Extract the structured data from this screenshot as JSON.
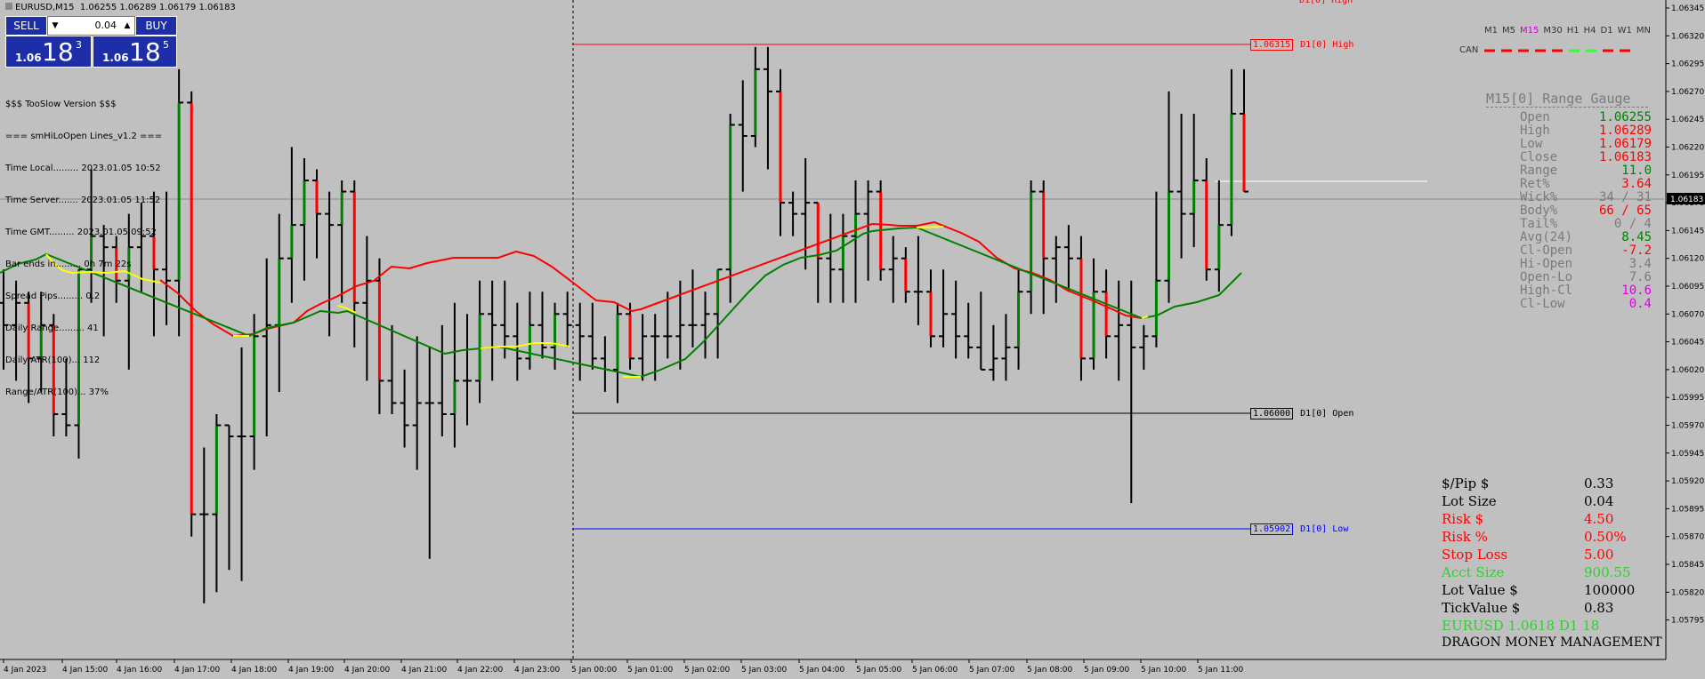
{
  "header": {
    "symbol": "EURUSD,M15",
    "ohlc": "1.06255 1.06289 1.06179 1.06183"
  },
  "trade_panel": {
    "sell_label": "SELL",
    "buy_label": "BUY",
    "lot_value": "0.04",
    "sell_price_small": "1.06",
    "sell_price_big": "18",
    "sell_price_sup": "3",
    "buy_price_small": "1.06",
    "buy_price_big": "18",
    "buy_price_sup": "5"
  },
  "info_lines": [
    "$$$ TooSlow Version $$$",
    "=== smHiLoOpen Lines_v1.2 ===",
    "Time Local......... 2023.01.05 10:52",
    "Time Server....... 2023.01.05 11:52",
    "Time GMT......... 2023.01.05 09:52",
    "Bar ends in......... 0h 7m 22s",
    "Spread Pips......... 0.2",
    "Daily Range......... 41",
    "Daily ATR(100)... 112",
    "Range/ATR(100)... 37%"
  ],
  "timeframes": [
    {
      "label": "M1",
      "color": "#333333"
    },
    {
      "label": "M5",
      "color": "#333333"
    },
    {
      "label": "M15",
      "color": "#d000d0"
    },
    {
      "label": "M30",
      "color": "#333333"
    },
    {
      "label": "H1",
      "color": "#333333"
    },
    {
      "label": "H4",
      "color": "#333333"
    },
    {
      "label": "D1",
      "color": "#333333"
    },
    {
      "label": "W1",
      "color": "#333333"
    },
    {
      "label": "MN",
      "color": "#333333"
    }
  ],
  "can_label": "CAN",
  "gauge": {
    "title": "M15[0] Range Gauge",
    "rows": [
      {
        "label": "Open",
        "value": "1.06255",
        "color": "#008000"
      },
      {
        "label": "High",
        "value": "1.06289",
        "color": "#ff0000"
      },
      {
        "label": "Low",
        "value": "1.06179",
        "color": "#ff0000"
      },
      {
        "label": "Close",
        "value": "1.06183",
        "color": "#ff0000"
      },
      {
        "label": "Range",
        "value": "11.0",
        "color": "#008000"
      },
      {
        "label": "Ret%",
        "value": "3.64",
        "color": "#ff0000"
      },
      {
        "label": "Wick%",
        "value": "34 / 31",
        "color": "#7a7a7a"
      },
      {
        "label": "Body%",
        "value": "66 / 65",
        "color": "#ff0000"
      },
      {
        "label": "Tail%",
        "value": "0 / 4",
        "color": "#7a7a7a"
      },
      {
        "label": "Avg(24)",
        "value": "8.45",
        "color": "#008000"
      },
      {
        "label": "Cl-Open",
        "value": "-7.2",
        "color": "#ff0000"
      },
      {
        "label": "Hi-Open",
        "value": "3.4",
        "color": "#7a7a7a"
      },
      {
        "label": "Open-Lo",
        "value": "7.6",
        "color": "#7a7a7a"
      },
      {
        "label": "High-Cl",
        "value": "10.6",
        "color": "#e000e0"
      },
      {
        "label": "Cl-Low",
        "value": "0.4",
        "color": "#e000e0"
      }
    ]
  },
  "risk": {
    "rows": [
      {
        "label": "$/Pip $",
        "value": "0.33",
        "color": "#000000"
      },
      {
        "label": "Lot Size",
        "value": "0.04",
        "color": "#000000"
      },
      {
        "label": "Risk $",
        "value": "4.50",
        "color": "#ff0000"
      },
      {
        "label": "Risk %",
        "value": "0.50%",
        "color": "#ff0000"
      },
      {
        "label": "Stop Loss",
        "value": "5.00",
        "color": "#ff0000"
      },
      {
        "label": "Acct Size",
        "value": "900.55",
        "color": "#32cd32"
      },
      {
        "label": "Lot Value $",
        "value": "100000",
        "color": "#000000"
      },
      {
        "label": "TickValue $",
        "value": "0.83",
        "color": "#000000"
      }
    ],
    "summary": "EURUSD 1.0618 D1 18",
    "summary_color": "#32cd32",
    "footer": "DRAGON MONEY MANAGEMENT"
  },
  "levels": {
    "high": {
      "price": "1.06315",
      "label": "D1[0] High",
      "color": "#ff0000"
    },
    "open": {
      "price": "1.06000",
      "label": "D1[0] Open",
      "color": "#000000"
    },
    "low": {
      "price": "1.05902",
      "label": "D1[0] Low",
      "color": "#0000ff"
    },
    "top_cut_label": "D1[0] High"
  },
  "price_axis": {
    "ticks": [
      "1.06345",
      "1.06320",
      "1.06295",
      "1.06270",
      "1.06245",
      "1.06220",
      "1.06195",
      "1.06170",
      "1.06145",
      "1.06120",
      "1.06095",
      "1.06070",
      "1.06045",
      "1.06020",
      "1.05995",
      "1.05970",
      "1.05945",
      "1.05920",
      "1.05895",
      "1.05870",
      "1.05845",
      "1.05820",
      "1.05795"
    ],
    "current": "1.06183"
  },
  "time_axis": [
    "4 Jan 2023",
    "4 Jan 15:00",
    "4 Jan 16:00",
    "4 Jan 17:00",
    "4 Jan 18:00",
    "4 Jan 19:00",
    "4 Jan 20:00",
    "4 Jan 21:00",
    "4 Jan 22:00",
    "4 Jan 23:00",
    "5 Jan 00:00",
    "5 Jan 01:00",
    "5 Jan 02:00",
    "5 Jan 03:00",
    "5 Jan 04:00",
    "5 Jan 05:00",
    "5 Jan 06:00",
    "5 Jan 07:00",
    "5 Jan 08:00",
    "5 Jan 09:00",
    "5 Jan 10:00",
    "5 Jan 11:00"
  ],
  "chart_data": {
    "type": "ohlc",
    "symbol": "EURUSD",
    "timeframe": "M15",
    "bars": [
      [
        1.0608,
        1.0611,
        1.0602,
        1.0606
      ],
      [
        1.0606,
        1.061,
        1.0601,
        1.0608
      ],
      [
        1.0608,
        1.0609,
        1.0599,
        1.0603
      ],
      [
        1.0603,
        1.0609,
        1.06,
        1.0606
      ],
      [
        1.0606,
        1.0607,
        1.0596,
        1.0598
      ],
      [
        1.0598,
        1.0603,
        1.0596,
        1.0597
      ],
      [
        1.0597,
        1.0611,
        1.0594,
        1.0611
      ],
      [
        1.0611,
        1.062,
        1.0608,
        1.0614
      ],
      [
        1.0614,
        1.0615,
        1.0605,
        1.0613
      ],
      [
        1.0613,
        1.0614,
        1.0608,
        1.061
      ],
      [
        1.061,
        1.0616,
        1.0602,
        1.0613
      ],
      [
        1.0613,
        1.0617,
        1.0609,
        1.0614
      ],
      [
        1.0614,
        1.0618,
        1.0605,
        1.0611
      ],
      [
        1.0611,
        1.0618,
        1.0606,
        1.061
      ],
      [
        1.061,
        1.0629,
        1.0605,
        1.0626
      ],
      [
        1.0626,
        1.0627,
        1.0587,
        1.0589
      ],
      [
        1.0589,
        1.0595,
        1.0581,
        1.0589
      ],
      [
        1.0589,
        1.0598,
        1.0582,
        1.0597
      ],
      [
        1.0597,
        1.0597,
        1.0584,
        1.0596
      ],
      [
        1.0596,
        1.0604,
        1.0583,
        1.0596
      ],
      [
        1.0596,
        1.0607,
        1.0593,
        1.0605
      ],
      [
        1.0605,
        1.0612,
        1.0596,
        1.0606
      ],
      [
        1.0606,
        1.0616,
        1.06,
        1.0612
      ],
      [
        1.0612,
        1.0622,
        1.0608,
        1.0615
      ],
      [
        1.0615,
        1.0621,
        1.061,
        1.0619
      ],
      [
        1.0619,
        1.062,
        1.0612,
        1.0616
      ],
      [
        1.0616,
        1.0618,
        1.0605,
        1.0615
      ],
      [
        1.0615,
        1.0619,
        1.0608,
        1.0618
      ],
      [
        1.0618,
        1.0619,
        1.0604,
        1.0608
      ],
      [
        1.0608,
        1.0614,
        1.0601,
        1.061
      ],
      [
        1.061,
        1.0612,
        1.0598,
        1.0601
      ],
      [
        1.0601,
        1.0606,
        1.0598,
        1.0599
      ],
      [
        1.0599,
        1.0602,
        1.0595,
        1.0597
      ],
      [
        1.0597,
        1.0605,
        1.0593,
        1.0599
      ],
      [
        1.0599,
        1.0604,
        1.0585,
        1.0599
      ],
      [
        1.0599,
        1.0606,
        1.0596,
        1.0598
      ],
      [
        1.0598,
        1.0608,
        1.0595,
        1.0601
      ],
      [
        1.0601,
        1.0607,
        1.0597,
        1.0601
      ],
      [
        1.0601,
        1.061,
        1.0599,
        1.0607
      ],
      [
        1.0607,
        1.061,
        1.0601,
        1.0606
      ],
      [
        1.0606,
        1.061,
        1.0603,
        1.0605
      ],
      [
        1.0605,
        1.0608,
        1.0601,
        1.0603
      ],
      [
        1.0603,
        1.0609,
        1.0602,
        1.0606
      ],
      [
        1.0606,
        1.0609,
        1.0603,
        1.0604
      ],
      [
        1.0604,
        1.0608,
        1.0602,
        1.0607
      ],
      [
        1.0607,
        1.0609,
        1.0604,
        1.0606
      ],
      [
        1.0606,
        1.0608,
        1.0601,
        1.0605
      ],
      [
        1.0605,
        1.0608,
        1.0602,
        1.0603
      ],
      [
        1.0603,
        1.0605,
        1.06,
        1.0602
      ],
      [
        1.0602,
        1.0608,
        1.0599,
        1.0607
      ],
      [
        1.0607,
        1.0608,
        1.0602,
        1.0603
      ],
      [
        1.0603,
        1.0607,
        1.0601,
        1.0605
      ],
      [
        1.0605,
        1.0607,
        1.0601,
        1.0605
      ],
      [
        1.0605,
        1.0609,
        1.0603,
        1.0605
      ],
      [
        1.0605,
        1.061,
        1.0602,
        1.0606
      ],
      [
        1.0606,
        1.0611,
        1.0604,
        1.0606
      ],
      [
        1.0606,
        1.0609,
        1.0603,
        1.0607
      ],
      [
        1.0607,
        1.061,
        1.0603,
        1.0611
      ],
      [
        1.0611,
        1.0625,
        1.0608,
        1.0624
      ],
      [
        1.0624,
        1.0628,
        1.0618,
        1.0623
      ],
      [
        1.0623,
        1.0631,
        1.0622,
        1.0629
      ],
      [
        1.0629,
        1.0631,
        1.062,
        1.0627
      ],
      [
        1.0627,
        1.0629,
        1.0614,
        1.0617
      ],
      [
        1.0617,
        1.0618,
        1.0614,
        1.0616
      ],
      [
        1.0616,
        1.0621,
        1.0611,
        1.0617
      ],
      [
        1.0617,
        1.0617,
        1.0608,
        1.0612
      ],
      [
        1.0612,
        1.0616,
        1.0608,
        1.0611
      ],
      [
        1.0611,
        1.0616,
        1.0608,
        1.0614
      ],
      [
        1.0614,
        1.0619,
        1.0608,
        1.0616
      ],
      [
        1.0616,
        1.0619,
        1.061,
        1.0618
      ],
      [
        1.0618,
        1.0619,
        1.061,
        1.0611
      ],
      [
        1.0611,
        1.0614,
        1.0608,
        1.0612
      ],
      [
        1.0612,
        1.0613,
        1.0608,
        1.0609
      ],
      [
        1.0609,
        1.0614,
        1.0606,
        1.0609
      ],
      [
        1.0609,
        1.0611,
        1.0604,
        1.0605
      ],
      [
        1.0605,
        1.0611,
        1.0604,
        1.0607
      ],
      [
        1.0607,
        1.061,
        1.0603,
        1.0605
      ],
      [
        1.0605,
        1.0608,
        1.0603,
        1.0604
      ],
      [
        1.0604,
        1.0609,
        1.0602,
        1.0602
      ],
      [
        1.0602,
        1.0606,
        1.0601,
        1.0603
      ],
      [
        1.0603,
        1.0607,
        1.0601,
        1.0604
      ],
      [
        1.0604,
        1.0611,
        1.0602,
        1.0609
      ],
      [
        1.0609,
        1.0619,
        1.0607,
        1.0618
      ],
      [
        1.0618,
        1.0619,
        1.0607,
        1.0612
      ],
      [
        1.0612,
        1.0614,
        1.0608,
        1.0613
      ],
      [
        1.0613,
        1.0615,
        1.0609,
        1.0612
      ],
      [
        1.0612,
        1.0614,
        1.0601,
        1.0603
      ],
      [
        1.0603,
        1.0612,
        1.0602,
        1.0609
      ],
      [
        1.0609,
        1.0611,
        1.0603,
        1.0605
      ],
      [
        1.0605,
        1.061,
        1.0601,
        1.0606
      ],
      [
        1.0606,
        1.061,
        1.059,
        1.0604
      ],
      [
        1.0604,
        1.0606,
        1.0602,
        1.0605
      ],
      [
        1.0605,
        1.0618,
        1.0604,
        1.061
      ],
      [
        1.061,
        1.0627,
        1.0608,
        1.0618
      ],
      [
        1.0618,
        1.0625,
        1.0612,
        1.0616
      ],
      [
        1.0616,
        1.0625,
        1.0613,
        1.0619
      ],
      [
        1.0619,
        1.0621,
        1.061,
        1.0611
      ],
      [
        1.0611,
        1.0619,
        1.0609,
        1.0615
      ],
      [
        1.0615,
        1.0629,
        1.0614,
        1.0625
      ],
      [
        1.0625,
        1.0629,
        1.0618,
        1.0618
      ]
    ]
  }
}
